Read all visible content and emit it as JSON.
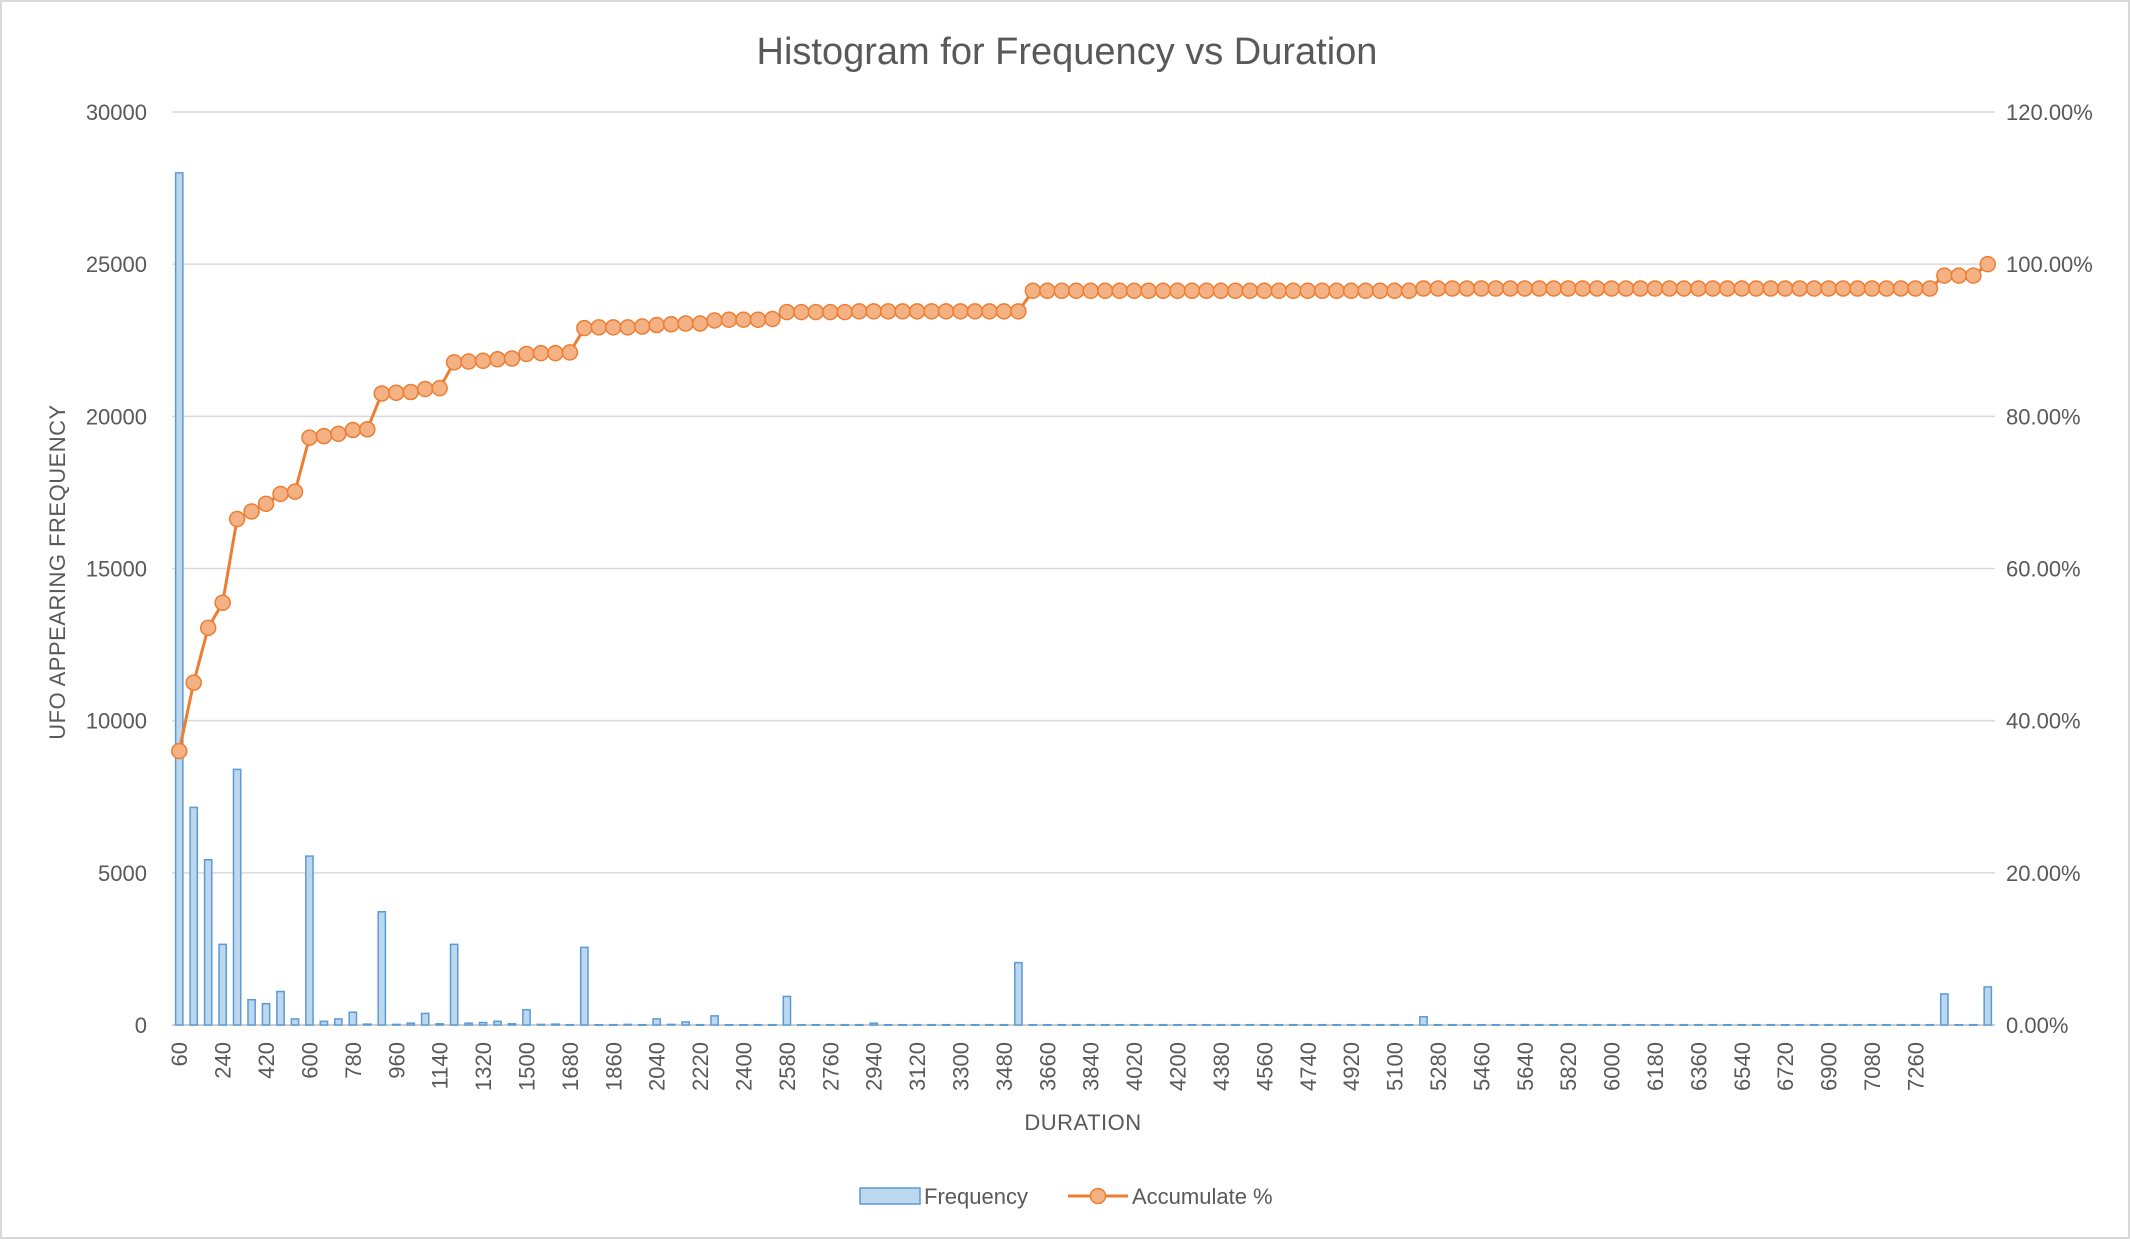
{
  "chart_data": {
    "type": "bar",
    "title": "Histogram for Frequency vs Duration",
    "xlabel": "DURATION",
    "ylabel": "UFO APPEARING FREQUENCY",
    "ylim": [
      0,
      30000
    ],
    "y2lim": [
      0,
      1.2
    ],
    "yticks": [
      "0",
      "5000",
      "10000",
      "15000",
      "20000",
      "25000",
      "30000"
    ],
    "y2ticks": [
      "0.00%",
      "20.00%",
      "40.00%",
      "60.00%",
      "80.00%",
      "100.00%",
      "120.00%"
    ],
    "xtick_labels": [
      "60",
      "240",
      "420",
      "600",
      "780",
      "960",
      "1140",
      "1320",
      "1500",
      "1680",
      "1860",
      "2040",
      "2220",
      "2400",
      "2580",
      "2760",
      "2940",
      "3120",
      "3300",
      "3480",
      "3660",
      "3840",
      "4020",
      "4200",
      "4380",
      "4560",
      "4740",
      "4920",
      "5100",
      "5280",
      "5460",
      "5640",
      "5820",
      "6000",
      "6180",
      "6360",
      "6540",
      "6720",
      "6900",
      "7080",
      "7260"
    ],
    "bin_start": 60,
    "bin_width": 60,
    "legend_position": "bottom",
    "grid": true,
    "colors": {
      "bar_fill": "#bdd7ee",
      "bar_stroke": "#5b9bd5",
      "line": "#ed7d31",
      "marker_fill": "#f4b183"
    },
    "series": [
      {
        "name": "Frequency",
        "type": "bar",
        "values": [
          28000,
          7150,
          5430,
          2650,
          8400,
          830,
          700,
          1100,
          200,
          5550,
          120,
          200,
          420,
          30,
          3720,
          20,
          60,
          380,
          40,
          2650,
          60,
          80,
          120,
          40,
          500,
          20,
          30,
          10,
          2550,
          10,
          10,
          20,
          10,
          200,
          20,
          100,
          10,
          300,
          10,
          10,
          10,
          10,
          940,
          10,
          10,
          10,
          10,
          10,
          60,
          10,
          10,
          10,
          10,
          10,
          10,
          10,
          10,
          10,
          2050,
          10,
          10,
          10,
          10,
          10,
          10,
          10,
          10,
          10,
          10,
          10,
          10,
          10,
          10,
          10,
          10,
          10,
          10,
          10,
          10,
          10,
          10,
          10,
          10,
          10,
          10,
          10,
          270,
          10,
          10,
          10,
          10,
          10,
          10,
          10,
          10,
          10,
          10,
          10,
          10,
          10,
          10,
          10,
          10,
          10,
          10,
          10,
          10,
          10,
          10,
          10,
          10,
          10,
          10,
          10,
          10,
          10,
          10,
          10,
          10,
          10,
          10,
          10,
          1020,
          10,
          10,
          1250
        ]
      },
      {
        "name": "Accumulate %",
        "type": "line",
        "values": [
          0.36,
          0.45,
          0.522,
          0.555,
          0.665,
          0.675,
          0.685,
          0.698,
          0.701,
          0.772,
          0.774,
          0.777,
          0.782,
          0.783,
          0.83,
          0.831,
          0.832,
          0.836,
          0.837,
          0.871,
          0.872,
          0.873,
          0.875,
          0.876,
          0.882,
          0.883,
          0.883,
          0.884,
          0.916,
          0.917,
          0.917,
          0.917,
          0.918,
          0.92,
          0.921,
          0.922,
          0.922,
          0.926,
          0.927,
          0.927,
          0.927,
          0.928,
          0.937,
          0.937,
          0.937,
          0.937,
          0.937,
          0.938,
          0.938,
          0.938,
          0.938,
          0.938,
          0.938,
          0.938,
          0.938,
          0.938,
          0.938,
          0.938,
          0.938,
          0.965,
          0.965,
          0.965,
          0.965,
          0.965,
          0.965,
          0.965,
          0.965,
          0.965,
          0.965,
          0.965,
          0.965,
          0.965,
          0.965,
          0.965,
          0.965,
          0.965,
          0.965,
          0.965,
          0.965,
          0.965,
          0.965,
          0.965,
          0.965,
          0.965,
          0.965,
          0.965,
          0.968,
          0.968,
          0.968,
          0.968,
          0.968,
          0.968,
          0.968,
          0.968,
          0.968,
          0.968,
          0.968,
          0.968,
          0.968,
          0.968,
          0.968,
          0.968,
          0.968,
          0.968,
          0.968,
          0.968,
          0.968,
          0.968,
          0.968,
          0.968,
          0.968,
          0.968,
          0.968,
          0.968,
          0.968,
          0.968,
          0.968,
          0.968,
          0.968,
          0.968,
          0.968,
          0.968,
          0.985,
          0.985,
          0.985,
          1.0
        ]
      }
    ]
  }
}
